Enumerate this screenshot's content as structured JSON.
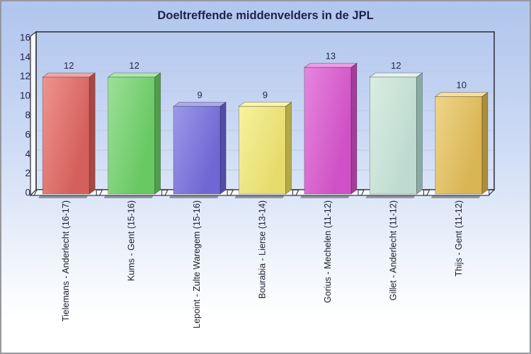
{
  "chart_data": {
    "type": "bar",
    "title": "Doeltreffende middenvelders in de JPL",
    "categories": [
      "Tielemans - Anderlecht (16-17)",
      "Kums - Gent (15-16)",
      "Lepoint - Zulte Waregem (15-16)",
      "Bourabia - Lierse (13-14)",
      "Gorius - Mechelen (11-12)",
      "Gillet - Anderlecht (11-12)",
      "Thijs - Gent (11-12)"
    ],
    "values": [
      12,
      12,
      9,
      9,
      13,
      12,
      10
    ],
    "xlabel": "",
    "ylabel": "",
    "ylim": [
      0,
      16
    ],
    "yticks": [
      0,
      2,
      4,
      6,
      8,
      10,
      12,
      14,
      16
    ],
    "grid": true,
    "legend_position": "none",
    "style": "3d-bars",
    "bar_colors": [
      {
        "front": "#f0938f",
        "front_dark": "#d4605b",
        "side": "#a84743",
        "top": "#f2a5a2"
      },
      {
        "front": "#9ce098",
        "front_dark": "#68c862",
        "side": "#4f9f4a",
        "top": "#ade8a9"
      },
      {
        "front": "#9c99e9",
        "front_dark": "#6f68d4",
        "side": "#524ba8",
        "top": "#aca9ef"
      },
      {
        "front": "#f7f29e",
        "front_dark": "#e6dc6e",
        "side": "#b3a947",
        "top": "#f9f5b0"
      },
      {
        "front": "#e686de",
        "front_dark": "#cf51c5",
        "side": "#a23d9a",
        "top": "#ec9ce5"
      },
      {
        "front": "#daede1",
        "front_dark": "#bedbd1",
        "side": "#88aba2",
        "top": "#e4f2ea"
      },
      {
        "front": "#efd58b",
        "front_dark": "#d9b554",
        "side": "#ad8c3a",
        "top": "#f3de9f"
      }
    ]
  },
  "colors": {
    "title_text": "#1f1f4e",
    "label_text": "#26264a",
    "category_text": "#1d1d2e",
    "axis_line": "#2b2b33",
    "gridline": "#c0cbe0",
    "wall_fill": "#f6f8fb",
    "bar_shadow": "#46464e",
    "window_border": "#96989d"
  }
}
